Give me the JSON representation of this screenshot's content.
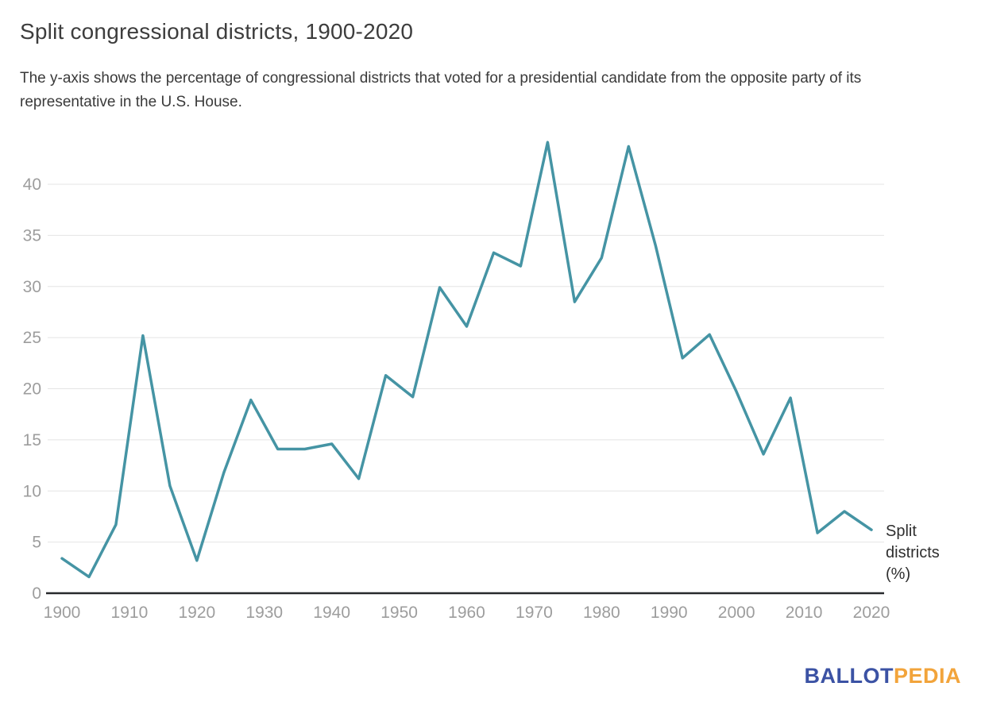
{
  "header": {
    "title": "Split congressional districts, 1900-2020",
    "subtitle": "The y-axis shows the percentage of congressional districts that voted for a presidential candidate from the opposite party of its representative in the U.S. House."
  },
  "chart_data": {
    "type": "line",
    "title": "Split congressional districts, 1900-2020",
    "x": [
      1900,
      1904,
      1908,
      1912,
      1916,
      1920,
      1924,
      1928,
      1932,
      1936,
      1940,
      1944,
      1948,
      1952,
      1956,
      1960,
      1964,
      1968,
      1972,
      1976,
      1980,
      1984,
      1988,
      1992,
      1996,
      2000,
      2004,
      2008,
      2012,
      2016,
      2020
    ],
    "series": [
      {
        "name": "Split districts (%)",
        "color": "#4594A4",
        "values": [
          3.4,
          1.6,
          6.7,
          25.2,
          10.5,
          3.2,
          11.8,
          18.9,
          14.1,
          14.1,
          14.6,
          11.2,
          21.3,
          19.2,
          29.9,
          26.1,
          33.3,
          32,
          44.1,
          28.5,
          32.8,
          43.7,
          34,
          23,
          25.3,
          19.7,
          13.6,
          19.1,
          5.9,
          8,
          6.2
        ]
      }
    ],
    "xticks": [
      1900,
      1910,
      1920,
      1930,
      1940,
      1950,
      1960,
      1970,
      1980,
      1990,
      2000,
      2010,
      2020
    ],
    "yticks": [
      0,
      5,
      10,
      15,
      20,
      25,
      30,
      35,
      40
    ],
    "ylim": [
      0,
      45
    ],
    "xlim": [
      1900,
      2020
    ],
    "xlabel": "",
    "ylabel": "",
    "grid": true,
    "legend_position": "end-of-line",
    "end_label": "Split districts (%)",
    "colors": {
      "line": "#4594A4",
      "gridline": "#e4e4e4",
      "axis_baseline": "#27292c",
      "tick_label": "#9d9d9d"
    }
  },
  "branding": {
    "logo_part1": "BALLOT",
    "logo_part2": "PEDIA",
    "logo_color1": "#3B52A4",
    "logo_color2": "#F2A43B"
  }
}
